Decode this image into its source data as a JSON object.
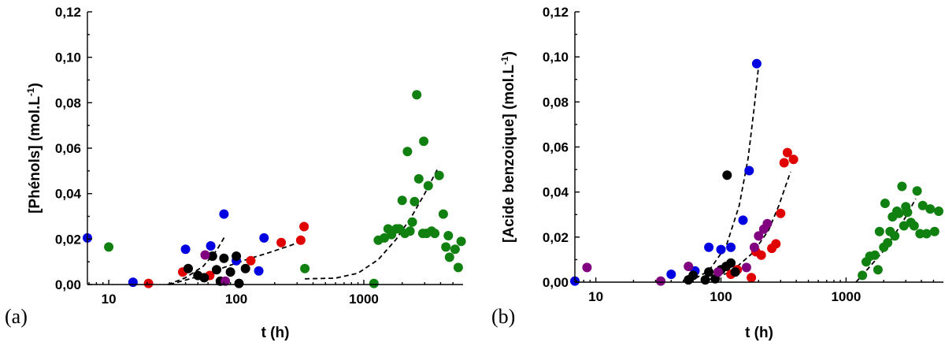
{
  "chart_data": [
    {
      "type": "scatter",
      "panel_label": "(a)",
      "xlabel": "t (h)",
      "ylabel": "[Phénols] (mol.L",
      "ylabel_sup": "-1",
      "ylabel_close": ")",
      "xscale": "log",
      "xlim": [
        6.8,
        6000
      ],
      "ylim": [
        0,
        0.12
      ],
      "xticks": [
        10,
        100,
        1000
      ],
      "xtick_labels": [
        "10",
        "100",
        "1000"
      ],
      "yticks": [
        0,
        0.02,
        0.04,
        0.06,
        0.08,
        0.1,
        0.12
      ],
      "ytick_labels": [
        "0,00",
        "0,02",
        "0,04",
        "0,06",
        "0,08",
        "0,10",
        "0,12"
      ],
      "grid": false,
      "series": [
        {
          "color": "#e00000",
          "points": [
            [
              20.5,
              0.0005
            ],
            [
              38,
              0.0055
            ],
            [
              62,
              0.004
            ],
            [
              130,
              0.0105
            ],
            [
              225,
              0.0185
            ],
            [
              320,
              0.0195
            ],
            [
              340,
              0.0255
            ]
          ]
        },
        {
          "color": "#0000e0",
          "points": [
            [
              6.8,
              0.0205
            ],
            [
              15.5,
              0.001
            ],
            [
              40,
              0.0155
            ],
            [
              63,
              0.017
            ],
            [
              80,
              0.031
            ],
            [
              100,
              0.0105
            ],
            [
              165,
              0.0205
            ],
            [
              150,
              0.006
            ]
          ]
        },
        {
          "color": "#000000",
          "points": [
            [
              42,
              0.007
            ],
            [
              50,
              0.004
            ],
            [
              56,
              0.003
            ],
            [
              65,
              0.0125
            ],
            [
              70,
              0.0065
            ],
            [
              80,
              0.0115
            ],
            [
              90,
              0.0055
            ],
            [
              100,
              0.0125
            ],
            [
              105,
              0.0005
            ],
            [
              118,
              0.007
            ],
            [
              75,
              0.0015
            ]
          ]
        },
        {
          "color": "#800080",
          "points": [
            [
              57,
              0.013
            ],
            [
              82,
              0.0015
            ]
          ]
        },
        {
          "color": "#108010",
          "points": [
            [
              10,
              0.0165
            ],
            [
              345,
              0.007
            ],
            [
              1200,
              0.0005
            ],
            [
              1300,
              0.0195
            ],
            [
              1450,
              0.0205
            ],
            [
              1550,
              0.0245
            ],
            [
              1650,
              0.022
            ],
            [
              1800,
              0.0245
            ],
            [
              1900,
              0.0245
            ],
            [
              2000,
              0.037
            ],
            [
              2100,
              0.0225
            ],
            [
              2200,
              0.0585
            ],
            [
              2300,
              0.0235
            ],
            [
              2400,
              0.0275
            ],
            [
              2500,
              0.0365
            ],
            [
              2600,
              0.0835
            ],
            [
              2700,
              0.0465
            ],
            [
              2900,
              0.0225
            ],
            [
              2950,
              0.063
            ],
            [
              3100,
              0.0225
            ],
            [
              3200,
              0.0435
            ],
            [
              3400,
              0.0235
            ],
            [
              3600,
              0.0225
            ],
            [
              3900,
              0.048
            ],
            [
              4200,
              0.031
            ],
            [
              4400,
              0.0165
            ],
            [
              4600,
              0.0215
            ],
            [
              4700,
              0.012
            ],
            [
              5200,
              0.0155
            ],
            [
              5500,
              0.0075
            ],
            [
              5800,
              0.019
            ]
          ]
        }
      ],
      "fits": [
        {
          "points": [
            [
              29,
              0.0
            ],
            [
              40,
              0.003
            ],
            [
              55,
              0.008
            ],
            [
              70,
              0.015
            ],
            [
              82,
              0.0215
            ]
          ]
        },
        {
          "points": [
            [
              30,
              0.0
            ],
            [
              50,
              0.0035
            ],
            [
              80,
              0.0075
            ],
            [
              120,
              0.011
            ],
            [
              180,
              0.014
            ],
            [
              260,
              0.017
            ],
            [
              340,
              0.0195
            ]
          ]
        },
        {
          "points": [
            [
              345,
              0.0025
            ],
            [
              600,
              0.0028
            ],
            [
              900,
              0.005
            ],
            [
              1300,
              0.011
            ],
            [
              1800,
              0.02
            ],
            [
              2400,
              0.0305
            ],
            [
              3000,
              0.04
            ],
            [
              3800,
              0.051
            ]
          ]
        }
      ]
    },
    {
      "type": "scatter",
      "panel_label": "(b)",
      "xlabel": "t (h)",
      "ylabel": "[Acide benzoique] (mol.L",
      "ylabel_sup": "-1",
      "ylabel_close": ")",
      "xscale": "log",
      "xlim": [
        6.8,
        6000
      ],
      "ylim": [
        0,
        0.12
      ],
      "xticks": [
        10,
        100,
        1000
      ],
      "xtick_labels": [
        "10",
        "100",
        "1000"
      ],
      "yticks": [
        0,
        0.02,
        0.04,
        0.06,
        0.08,
        0.1,
        0.12
      ],
      "ytick_labels": [
        "0,00",
        "0,02",
        "0,04",
        "0,06",
        "0,08",
        "0,10",
        "0,12"
      ],
      "grid": false,
      "series": [
        {
          "color": "#e00000",
          "points": [
            [
              120,
              0.0035
            ],
            [
              135,
              0.0055
            ],
            [
              175,
              0.002
            ],
            [
              190,
              0.0135
            ],
            [
              210,
              0.012
            ],
            [
              255,
              0.015
            ],
            [
              275,
              0.017
            ],
            [
              300,
              0.0305
            ],
            [
              320,
              0.053
            ],
            [
              340,
              0.0575
            ],
            [
              380,
              0.0545
            ]
          ]
        },
        {
          "color": "#0000e0",
          "points": [
            [
              6.8,
              0.0005
            ],
            [
              40,
              0.0035
            ],
            [
              62,
              0.005
            ],
            [
              80,
              0.0155
            ],
            [
              100,
              0.0145
            ],
            [
              120,
              0.0155
            ],
            [
              150,
              0.0275
            ],
            [
              168,
              0.0495
            ],
            [
              193,
              0.097
            ]
          ]
        },
        {
          "color": "#000000",
          "points": [
            [
              55,
              0.001
            ],
            [
              60,
              0.003
            ],
            [
              75,
              0.001
            ],
            [
              80,
              0.0045
            ],
            [
              90,
              0.0015
            ],
            [
              100,
              0.0055
            ],
            [
              110,
              0.007
            ],
            [
              120,
              0.0085
            ],
            [
              130,
              0.0045
            ],
            [
              112,
              0.0475
            ]
          ]
        },
        {
          "color": "#800080",
          "points": [
            [
              8.5,
              0.0065
            ],
            [
              33,
              0.0005
            ],
            [
              55,
              0.007
            ],
            [
              95,
              0.0045
            ],
            [
              160,
              0.0065
            ],
            [
              185,
              0.0155
            ],
            [
              200,
              0.0205
            ],
            [
              220,
              0.0235
            ],
            [
              235,
              0.026
            ]
          ]
        },
        {
          "color": "#108010",
          "points": [
            [
              1350,
              0.003
            ],
            [
              1450,
              0.009
            ],
            [
              1550,
              0.0115
            ],
            [
              1700,
              0.012
            ],
            [
              1800,
              0.0055
            ],
            [
              1850,
              0.0225
            ],
            [
              2000,
              0.0155
            ],
            [
              2050,
              0.035
            ],
            [
              2150,
              0.0175
            ],
            [
              2250,
              0.0225
            ],
            [
              2350,
              0.029
            ],
            [
              2450,
              0.0205
            ],
            [
              2550,
              0.0315
            ],
            [
              2650,
              0.0305
            ],
            [
              2800,
              0.0425
            ],
            [
              2900,
              0.025
            ],
            [
              3000,
              0.0335
            ],
            [
              3100,
              0.031
            ],
            [
              3300,
              0.0265
            ],
            [
              3500,
              0.025
            ],
            [
              3700,
              0.0405
            ],
            [
              3900,
              0.0215
            ],
            [
              4100,
              0.034
            ],
            [
              4400,
              0.0215
            ],
            [
              4700,
              0.0325
            ],
            [
              5100,
              0.0225
            ],
            [
              5500,
              0.0315
            ]
          ]
        }
      ],
      "fits": [
        {
          "points": [
            [
              55,
              0.0
            ],
            [
              80,
              0.005
            ],
            [
              110,
              0.016
            ],
            [
              140,
              0.034
            ],
            [
              165,
              0.055
            ],
            [
              185,
              0.078
            ],
            [
              200,
              0.096
            ]
          ]
        },
        {
          "points": [
            [
              70,
              0.0
            ],
            [
              120,
              0.0045
            ],
            [
              180,
              0.013
            ],
            [
              240,
              0.023
            ],
            [
              290,
              0.034
            ],
            [
              330,
              0.043
            ],
            [
              360,
              0.049
            ]
          ]
        },
        {
          "points": [
            [
              1200,
              0.0
            ],
            [
              1500,
              0.006
            ],
            [
              2000,
              0.014
            ],
            [
              2500,
              0.022
            ],
            [
              3000,
              0.029
            ],
            [
              3600,
              0.037
            ]
          ]
        }
      ]
    }
  ]
}
